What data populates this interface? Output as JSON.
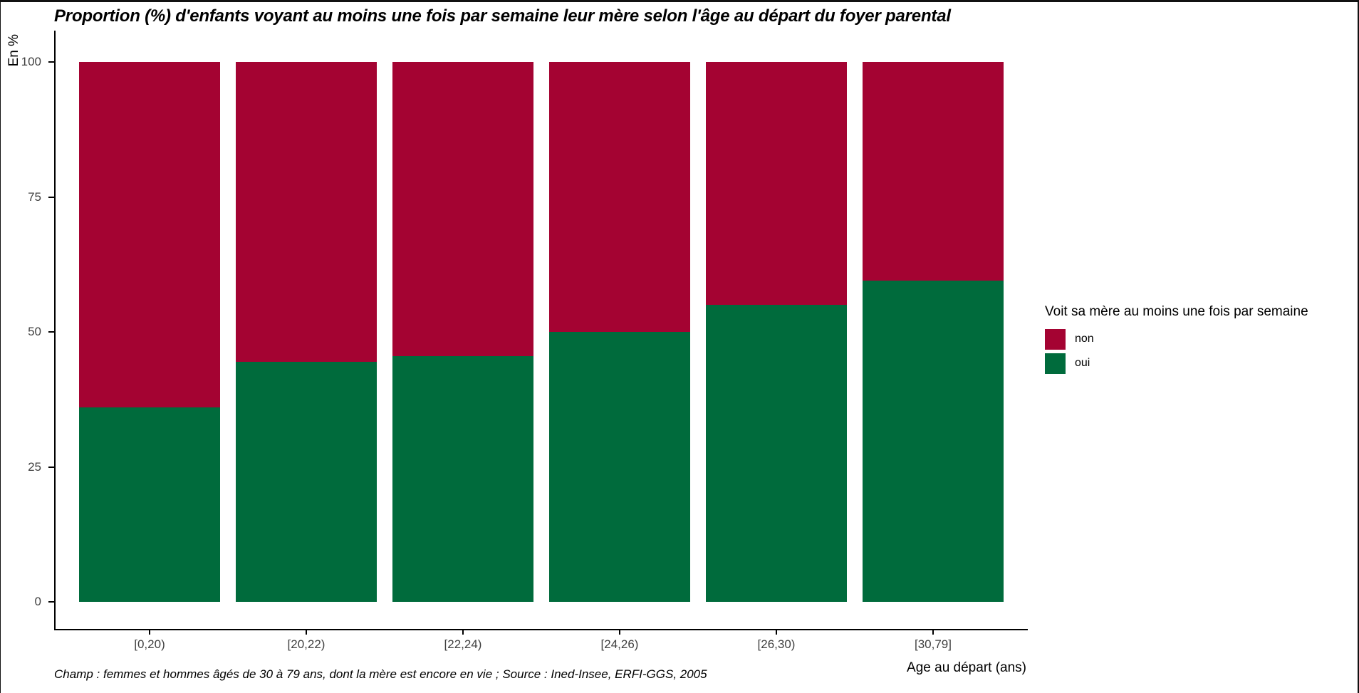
{
  "window": {
    "background": "#ffffff",
    "frame_border_color": "#111111"
  },
  "chart_data": {
    "type": "bar",
    "stacked": true,
    "orientation": "vertical",
    "title": "Proportion (%) d'enfants voyant au moins une fois par semaine leur mère selon l'âge au départ du foyer parental",
    "ylabel": "En %",
    "xlabel": "Age au départ (ans)",
    "categories": [
      "[0,20)",
      "[20,22)",
      "[22,24)",
      "[24,26)",
      "[26,30)",
      "[30,79]"
    ],
    "series": [
      {
        "name": "oui",
        "color": "#006B3C",
        "values": [
          36,
          44.5,
          45.5,
          50,
          55,
          59.5
        ]
      },
      {
        "name": "non",
        "color": "#A40332",
        "values": [
          64,
          55.5,
          54.5,
          50,
          45,
          40.5
        ]
      }
    ],
    "ylim": [
      0,
      100
    ],
    "yticks": [
      0,
      25,
      50,
      75,
      100
    ],
    "grid": false,
    "axis_color": "#000000",
    "tick_label_color": "#404040",
    "legend": {
      "title": "Voit sa mère au moins une fois par semaine",
      "position": "right",
      "entries": [
        "non",
        "oui"
      ]
    },
    "caption": "Champ : femmes et hommes âgés de 30 à 79 ans, dont la mère est encore en vie ; Source : Ined-Insee, ERFI-GGS, 2005"
  }
}
